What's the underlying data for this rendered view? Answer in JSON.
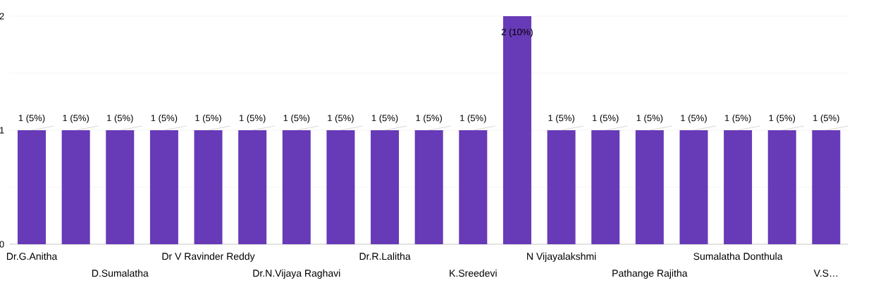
{
  "chart_data": {
    "type": "bar",
    "categories": [
      "Dr.G.Anitha",
      null,
      "D.Sumalatha",
      null,
      "Dr V Ravinder Reddy",
      null,
      "Dr.N.Vijaya Raghavi",
      null,
      "Dr.R.Lalitha",
      null,
      "K.Sreedevi",
      null,
      "N Vijayalakshmi",
      null,
      "Pathange Rajitha",
      null,
      "Sumalatha Donthula",
      null,
      "V.S…"
    ],
    "values": [
      1,
      1,
      1,
      1,
      1,
      1,
      1,
      1,
      1,
      1,
      1,
      2,
      1,
      1,
      1,
      1,
      1,
      1,
      1
    ],
    "value_labels": [
      "1 (5%)",
      "1 (5%)",
      "1 (5%)",
      "1 (5%)",
      "1 (5%)",
      "1 (5%)",
      "1 (5%)",
      "1 (5%)",
      "1 (5%)",
      "1 (5%)",
      "1 (5%)",
      "2 (10%)",
      "1 (5%)",
      "1 (5%)",
      "1 (5%)",
      "1 (5%)",
      "1 (5%)",
      "1 (5%)",
      "1 (5%)"
    ],
    "color": "#673ab7",
    "ylim": [
      0,
      2
    ],
    "yticks": [
      0,
      {
        "value": 0.5,
        "label": null
      },
      1,
      {
        "value": 1.5,
        "label": null
      },
      2
    ],
    "grid": "y"
  }
}
